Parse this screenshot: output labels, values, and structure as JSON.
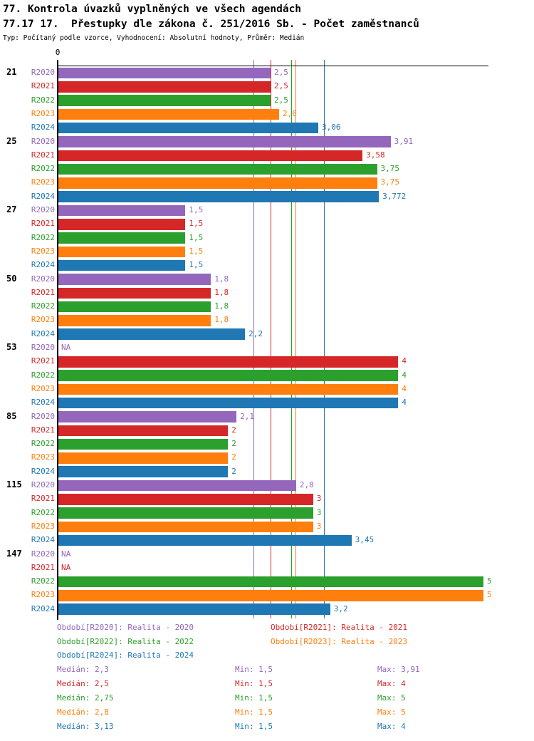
{
  "header": {
    "title_line1": "77. Kontrola úvazků vyplněných ve všech agendách",
    "title_line2": "77.17 17.  Přestupky dle zákona č. 251/2016 Sb. - Počet zaměstnanců",
    "subtitle": "Typ: Počítaný podle vzorce, Vyhodnocení: Absolutní hodnoty, Průměr: Medián"
  },
  "chart_data": {
    "type": "bar",
    "orientation": "horizontal",
    "x_axis": {
      "zero_label": "0",
      "min": 0,
      "max": 5
    },
    "na_text": "NA",
    "legend_position": "bottom",
    "series": [
      {
        "year": "R2020",
        "color": "#9467bd",
        "legend_label": "Období[R2020]: Realita - 2020",
        "median": 2.3,
        "stats": {
          "median": "Medián: 2,3",
          "min": "Min: 1,5",
          "max": "Max: 3,91"
        }
      },
      {
        "year": "R2021",
        "color": "#d62728",
        "legend_label": "Období[R2021]: Realita - 2021",
        "median": 2.5,
        "stats": {
          "median": "Medián: 2,5",
          "min": "Min: 1,5",
          "max": "Max: 4"
        }
      },
      {
        "year": "R2022",
        "color": "#2ca02c",
        "legend_label": "Období[R2022]: Realita - 2022",
        "median": 2.75,
        "stats": {
          "median": "Medián: 2,75",
          "min": "Min: 1,5",
          "max": "Max: 5"
        }
      },
      {
        "year": "R2023",
        "color": "#ff7f0e",
        "legend_label": "Období[R2023]: Realita - 2023",
        "median": 2.8,
        "stats": {
          "median": "Medián: 2,8",
          "min": "Min: 1,5",
          "max": "Max: 5"
        }
      },
      {
        "year": "R2024",
        "color": "#1f77b4",
        "legend_label": "Období[R2024]: Realita - 2024",
        "median": 3.13,
        "stats": {
          "median": "Medián: 3,13",
          "min": "Min: 1,5",
          "max": "Max: 4"
        }
      }
    ],
    "groups": [
      {
        "label": "21",
        "values": [
          2.5,
          2.5,
          2.5,
          2.6,
          3.06
        ],
        "value_labels": [
          "2,5",
          "2,5",
          "2,5",
          "2,6",
          "3,06"
        ]
      },
      {
        "label": "25",
        "values": [
          3.91,
          3.58,
          3.75,
          3.75,
          3.772
        ],
        "value_labels": [
          "3,91",
          "3,58",
          "3,75",
          "3,75",
          "3,772"
        ]
      },
      {
        "label": "27",
        "values": [
          1.5,
          1.5,
          1.5,
          1.5,
          1.5
        ],
        "value_labels": [
          "1,5",
          "1,5",
          "1,5",
          "1,5",
          "1,5"
        ]
      },
      {
        "label": "50",
        "values": [
          1.8,
          1.8,
          1.8,
          1.8,
          2.2
        ],
        "value_labels": [
          "1,8",
          "1,8",
          "1,8",
          "1,8",
          "2,2"
        ]
      },
      {
        "label": "53",
        "values": [
          null,
          4,
          4,
          4,
          4
        ],
        "value_labels": [
          "NA",
          "4",
          "4",
          "4",
          "4"
        ]
      },
      {
        "label": "85",
        "values": [
          2.1,
          2,
          2,
          2,
          2
        ],
        "value_labels": [
          "2,1",
          "2",
          "2",
          "2",
          "2"
        ]
      },
      {
        "label": "115",
        "values": [
          2.8,
          3,
          3,
          3,
          3.45
        ],
        "value_labels": [
          "2,8",
          "3",
          "3",
          "3",
          "3,45"
        ]
      },
      {
        "label": "147",
        "values": [
          null,
          null,
          5,
          5,
          3.2
        ],
        "value_labels": [
          "NA",
          "NA",
          "5",
          "5",
          "3,2"
        ]
      }
    ]
  }
}
